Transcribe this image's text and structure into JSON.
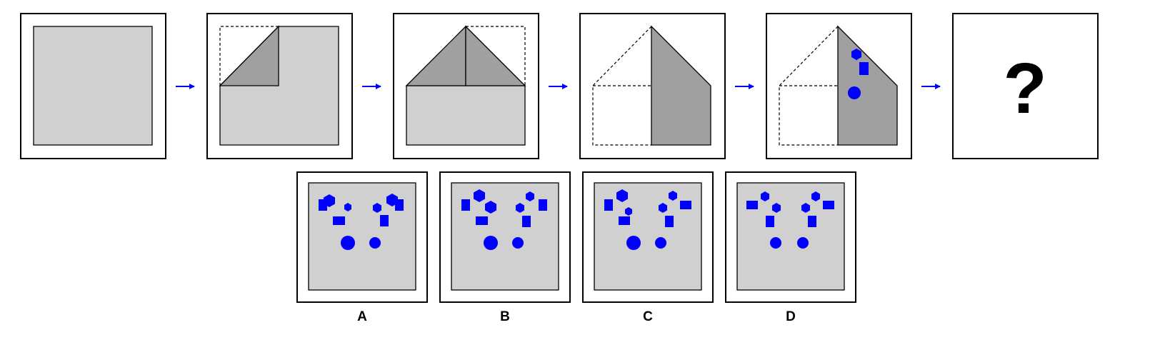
{
  "question_mark": "?",
  "colors": {
    "paper": "#d0d0d0",
    "fold": "#a0a0a0",
    "shape": "#0000ff",
    "arrow": "#0000ff",
    "frame": "#000000"
  },
  "sequence": [
    {
      "step": "unfolded-sheet"
    },
    {
      "step": "top-left-corner-folded"
    },
    {
      "step": "both-top-corners-folded"
    },
    {
      "step": "left-half-folded"
    },
    {
      "step": "holes-punched",
      "holes": [
        "hexagon",
        "square",
        "circle"
      ]
    },
    {
      "step": "question"
    }
  ],
  "options": [
    {
      "label": "A"
    },
    {
      "label": "B"
    },
    {
      "label": "C"
    },
    {
      "label": "D"
    }
  ]
}
